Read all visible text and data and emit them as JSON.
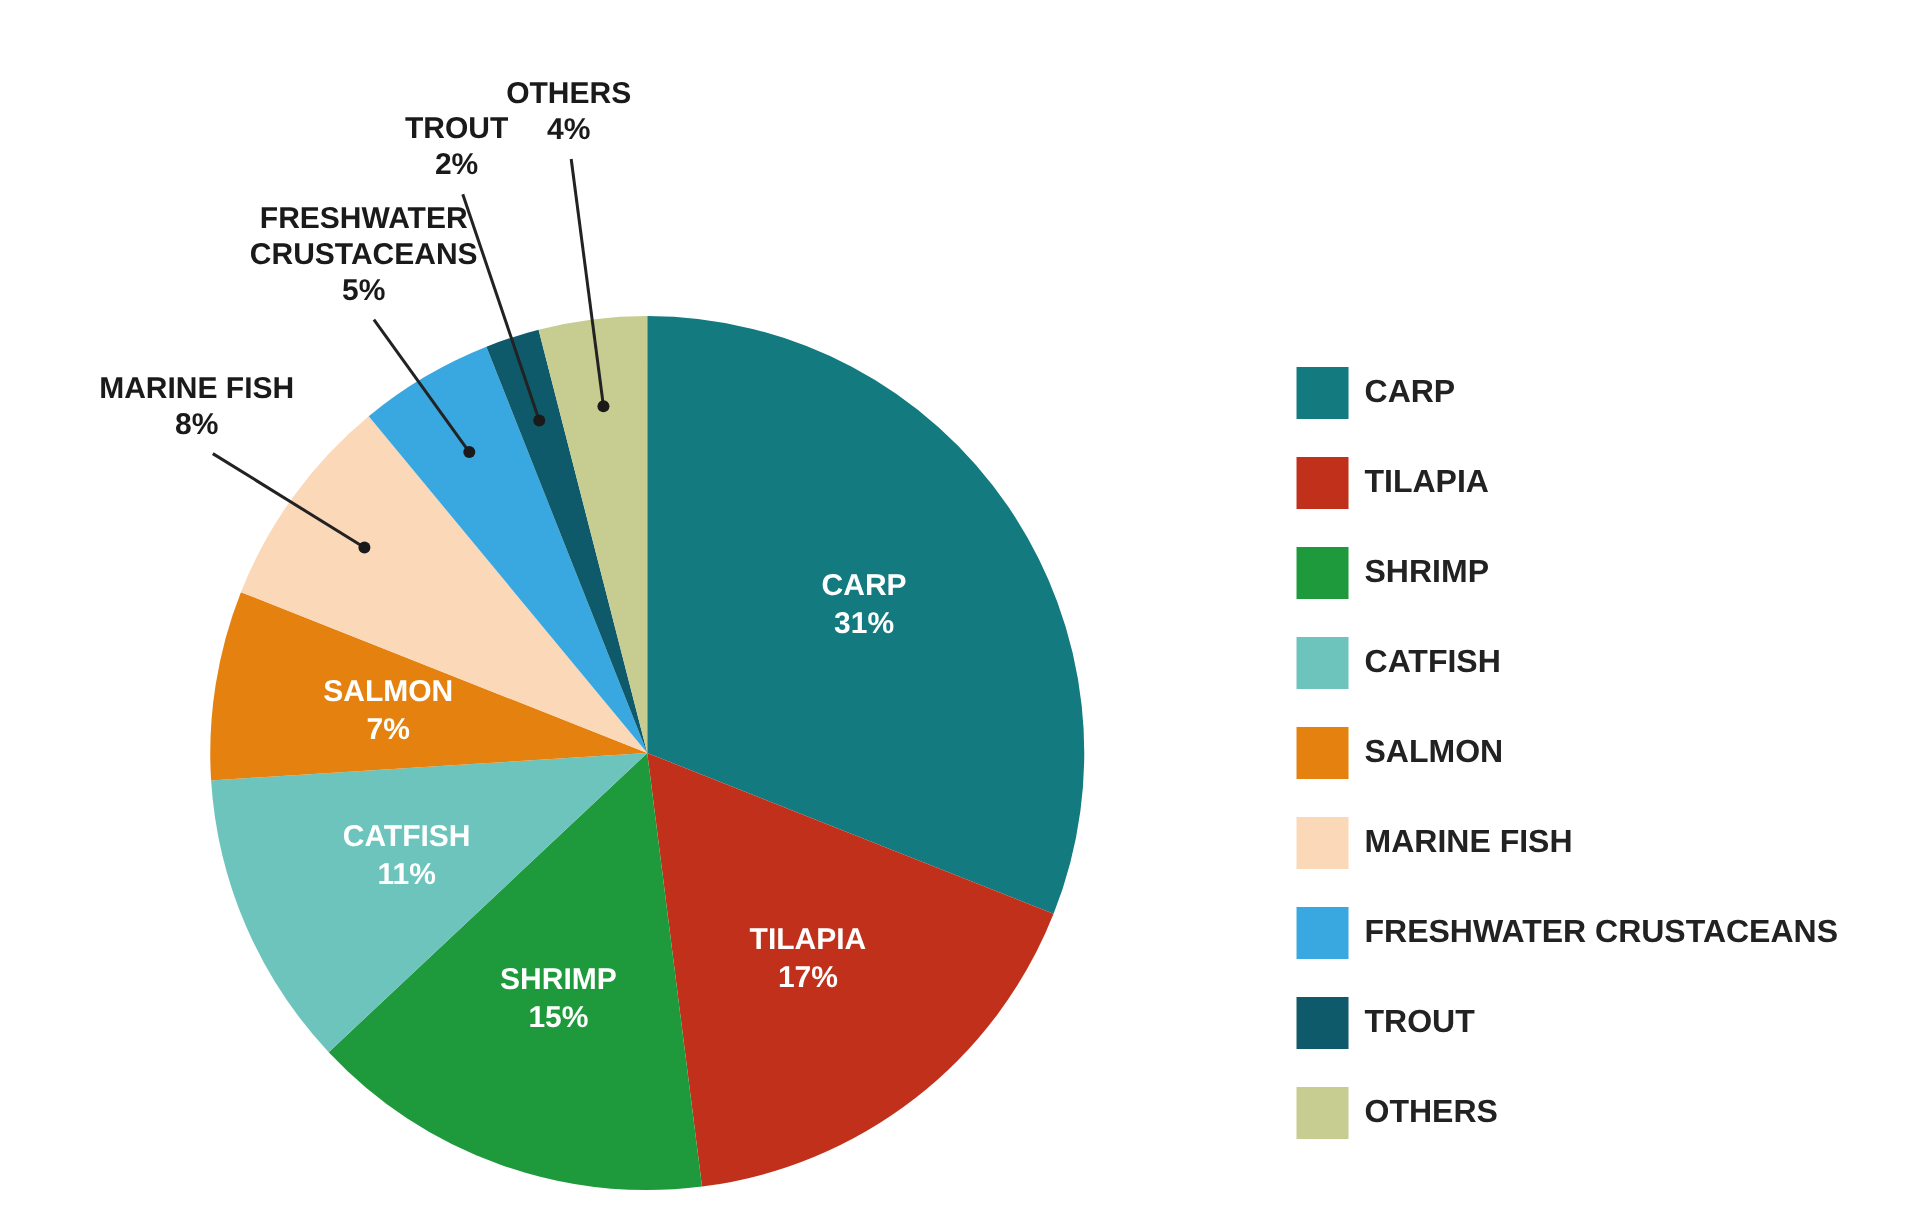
{
  "chart_data": {
    "type": "pie",
    "categories": [
      "CARP",
      "TILAPIA",
      "SHRIMP",
      "CATFISH",
      "SALMON",
      "MARINE FISH",
      "FRESHWATER CRUSTACEANS",
      "TROUT",
      "OTHERS"
    ],
    "values": [
      31,
      17,
      15,
      11,
      7,
      8,
      5,
      2,
      4
    ],
    "value_labels": [
      "31%",
      "17%",
      "15%",
      "11%",
      "7%",
      "8%",
      "5%",
      "2%",
      "4%"
    ],
    "colors": [
      "#137a80",
      "#c0301a",
      "#1e9a3c",
      "#6cc4bc",
      "#e5820f",
      "#fbd8b8",
      "#3aa8e0",
      "#0f5a6a",
      "#c7cc90"
    ],
    "legend": "right"
  }
}
